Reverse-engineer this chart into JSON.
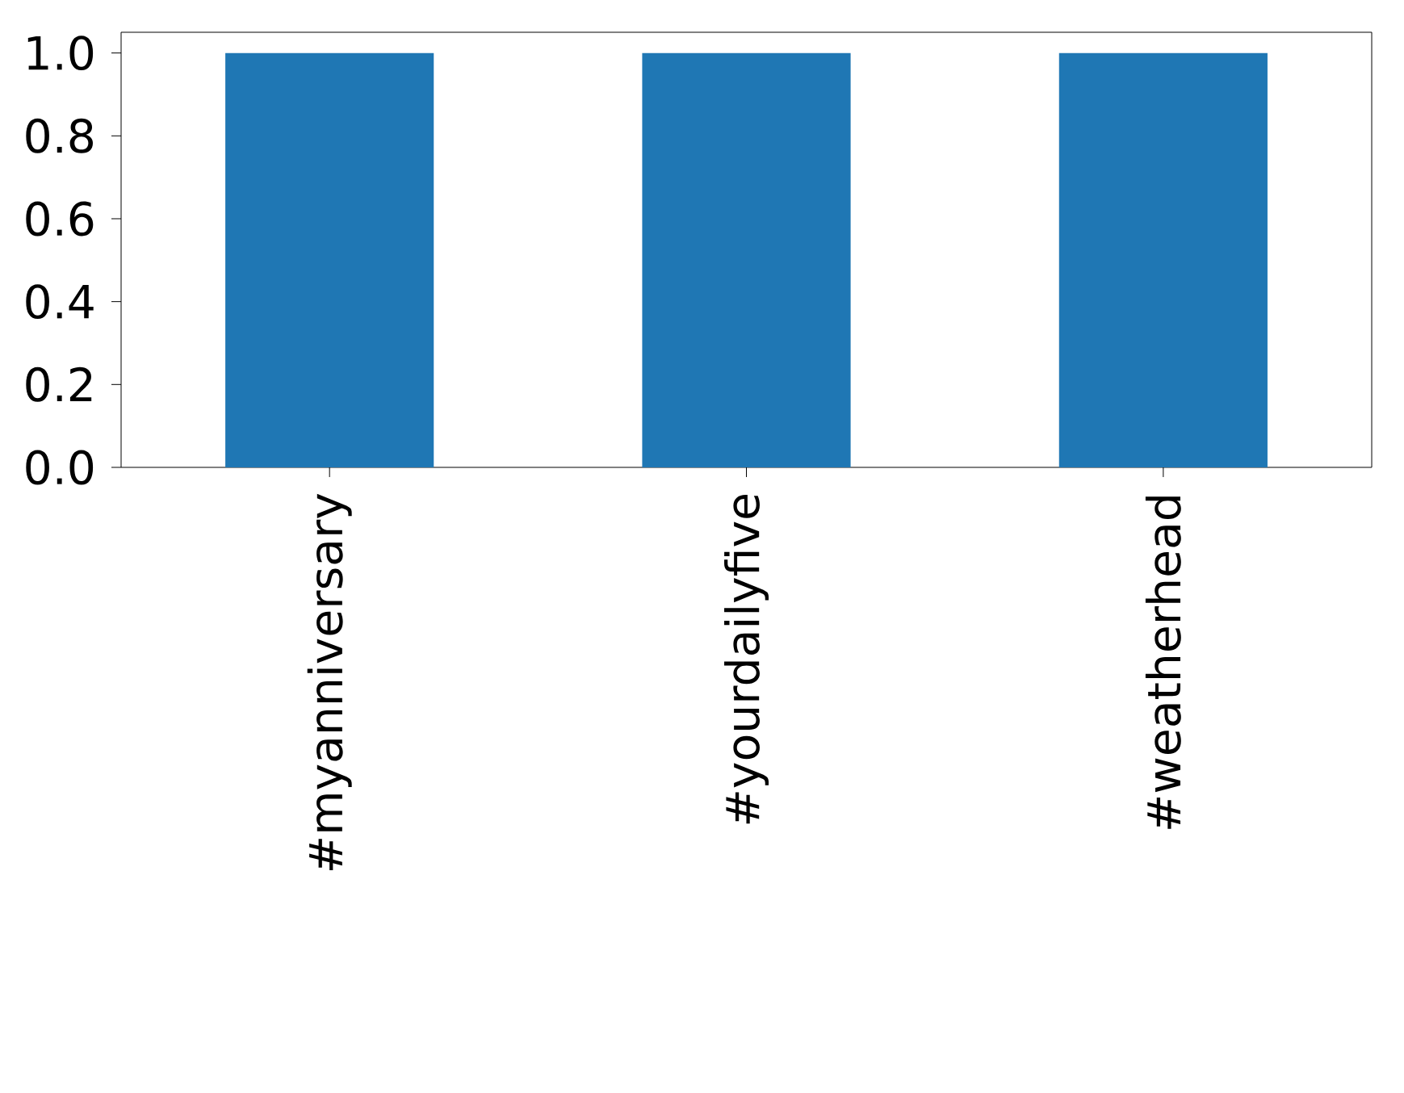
{
  "chart_data": {
    "type": "bar",
    "categories": [
      "#myanniversary",
      "#yourdailyfive",
      "#weatherhead"
    ],
    "values": [
      1.0,
      1.0,
      1.0
    ],
    "color": "#1f77b4",
    "ylim": [
      0,
      1.05
    ],
    "yticks": [
      {
        "value": 0,
        "label": "0.0"
      },
      {
        "value": 0.2,
        "label": "0.2"
      },
      {
        "value": 0.4,
        "label": "0.4"
      },
      {
        "value": 0.6,
        "label": "0.6"
      },
      {
        "value": 0.8,
        "label": "0.8"
      },
      {
        "value": 1.0,
        "label": "1.0"
      }
    ],
    "grid": false
  }
}
